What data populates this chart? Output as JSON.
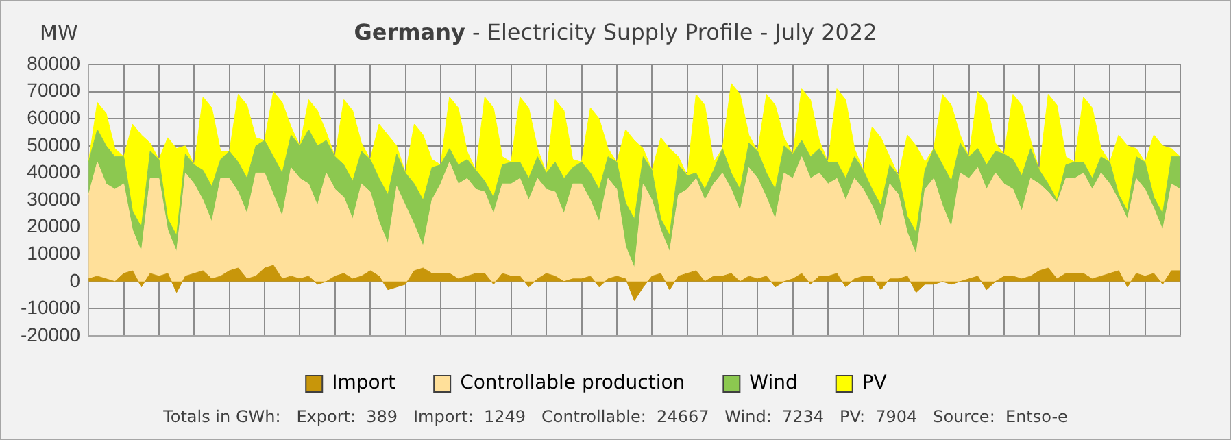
{
  "chart_data": {
    "type": "area",
    "title": "Germany - Electricity Supply Profile - July 2022",
    "ylabel": "MW",
    "stacked": true,
    "grid": true,
    "legend": "bottom",
    "tick_labels": "y",
    "marker": "none",
    "categories": [
      null,
      null,
      null,
      null,
      null,
      null,
      null,
      null,
      null,
      null,
      null,
      null,
      null,
      null,
      null,
      null,
      null,
      null,
      null,
      null,
      null,
      null,
      null,
      null,
      null,
      null,
      null,
      null,
      null,
      null,
      null,
      null,
      null,
      null,
      null,
      null,
      null,
      null,
      null,
      null,
      null,
      null,
      null,
      null,
      null,
      null,
      null,
      null,
      null,
      null,
      null,
      null,
      null,
      null,
      null,
      null,
      null,
      null,
      null,
      null,
      null,
      null,
      null,
      null,
      null,
      null,
      null,
      null,
      null,
      null,
      null,
      null,
      null,
      null,
      null,
      null,
      null,
      null,
      null,
      null,
      null,
      null,
      null,
      null,
      null,
      null,
      null,
      null,
      null,
      null,
      null,
      null,
      null,
      null,
      null,
      null,
      null,
      null,
      null,
      null,
      null,
      null,
      null,
      null,
      null,
      null,
      null,
      null,
      null,
      null,
      null,
      null,
      null,
      null,
      null,
      null,
      null,
      null,
      null,
      null,
      null,
      null,
      null,
      null,
      null
    ],
    "ylim": [
      -20000,
      80000
    ],
    "yticks": [
      -20000,
      -10000,
      0,
      10000,
      20000,
      30000,
      40000,
      50000,
      60000,
      70000,
      80000
    ],
    "series": [
      {
        "name": "Import",
        "color": "#c8960a",
        "values": [
          1000,
          2000,
          1000,
          0,
          3000,
          4000,
          -2000,
          3000,
          2000,
          3000,
          -4000,
          2000,
          3000,
          4000,
          1000,
          2000,
          4000,
          5000,
          1000,
          2000,
          5000,
          6000,
          1000,
          2000,
          1000,
          2000,
          -1000,
          0,
          2000,
          3000,
          1000,
          2000,
          4000,
          2000,
          -3000,
          -2000,
          -1000,
          4000,
          5000,
          3000,
          3000,
          3000,
          1000,
          2000,
          3000,
          3000,
          -1000,
          3000,
          2000,
          2000,
          -2000,
          1000,
          3000,
          2000,
          0,
          1000,
          1000,
          2000,
          -2000,
          1000,
          2000,
          1000,
          -7000,
          -2000,
          2000,
          3000,
          -3000,
          2000,
          3000,
          4000,
          0,
          2000,
          2000,
          3000,
          0,
          2000,
          1000,
          2000,
          -2000,
          0,
          1000,
          3000,
          -1000,
          2000,
          2000,
          3000,
          -2000,
          1000,
          2000,
          2000,
          -3000,
          1000,
          1000,
          2000,
          -4000,
          -1000,
          -1000,
          0,
          -1000,
          0,
          1000,
          2000,
          -3000,
          0,
          2000,
          2000,
          1000,
          2000,
          4000,
          5000,
          1000,
          3000,
          3000,
          3000,
          1000,
          2000,
          3000,
          4000,
          -2000,
          3000,
          2000,
          3000,
          -1000,
          4000,
          4000
        ]
      },
      {
        "name": "Controllable production",
        "color": "#ffe09a",
        "values": [
          31000,
          42000,
          35000,
          34000,
          33000,
          15000,
          13000,
          35000,
          36000,
          16000,
          15000,
          38000,
          33000,
          26000,
          21000,
          36000,
          34000,
          28000,
          24000,
          38000,
          35000,
          26000,
          23000,
          40000,
          37000,
          34000,
          29000,
          40000,
          32000,
          28000,
          22000,
          34000,
          29000,
          20000,
          17000,
          37000,
          29000,
          17000,
          8000,
          27000,
          33000,
          41000,
          35000,
          36000,
          31000,
          30000,
          26000,
          33000,
          34000,
          36000,
          32000,
          37000,
          31000,
          31000,
          25000,
          35000,
          35000,
          28000,
          24000,
          37000,
          32000,
          12000,
          12000,
          38000,
          28000,
          16000,
          14000,
          30000,
          31000,
          34000,
          30000,
          34000,
          38000,
          31000,
          26000,
          40000,
          37000,
          29000,
          25000,
          40000,
          37000,
          43000,
          39000,
          38000,
          34000,
          35000,
          32000,
          37000,
          32000,
          26000,
          23000,
          35000,
          31000,
          16000,
          14000,
          35000,
          39000,
          28000,
          21000,
          40000,
          37000,
          40000,
          37000,
          40000,
          34000,
          32000,
          25000,
          36000,
          32000,
          28000,
          28000,
          35000,
          35000,
          37000,
          33000,
          38000,
          33000,
          26000,
          25000,
          35000,
          32000,
          24000,
          20000,
          32000,
          30000
        ]
      },
      {
        "name": "Wind",
        "color": "#8cc850",
        "values": [
          12000,
          12000,
          14000,
          12000,
          10000,
          7000,
          9000,
          10000,
          7000,
          4000,
          6000,
          7000,
          7000,
          11000,
          13000,
          7000,
          10000,
          11000,
          13000,
          10000,
          12000,
          14000,
          16000,
          12000,
          12000,
          20000,
          22000,
          12000,
          12000,
          12000,
          14000,
          12000,
          12000,
          16000,
          18000,
          12000,
          12000,
          15000,
          17000,
          12000,
          7000,
          5000,
          7000,
          7000,
          7000,
          4000,
          6000,
          7000,
          8000,
          6000,
          8000,
          8000,
          6000,
          11000,
          13000,
          6000,
          8000,
          10000,
          12000,
          8000,
          10000,
          16000,
          18000,
          10000,
          11000,
          4000,
          6000,
          11000,
          5000,
          2000,
          4000,
          5000,
          9000,
          6000,
          8000,
          9000,
          10000,
          9000,
          11000,
          10000,
          9000,
          6000,
          8000,
          9000,
          8000,
          6000,
          8000,
          8000,
          7000,
          6000,
          8000,
          7000,
          7000,
          6000,
          8000,
          7000,
          11000,
          15000,
          17000,
          11000,
          8000,
          7000,
          9000,
          8000,
          11000,
          11000,
          13000,
          11000,
          5000,
          3000,
          1000,
          5000,
          6000,
          4000,
          4000,
          6000,
          8000,
          2000,
          3000,
          8000,
          10000,
          4000,
          6000,
          10000,
          12000
        ]
      },
      {
        "name": "PV",
        "color": "#ffff00",
        "values": [
          0,
          10000,
          12000,
          3000,
          0,
          32000,
          34000,
          3000,
          0,
          30000,
          32000,
          3000,
          0,
          27000,
          29000,
          3000,
          0,
          25000,
          27000,
          3000,
          0,
          24000,
          26000,
          3000,
          0,
          11000,
          13000,
          3000,
          0,
          24000,
          26000,
          3000,
          0,
          20000,
          22000,
          3000,
          0,
          22000,
          24000,
          3000,
          0,
          19000,
          21000,
          3000,
          0,
          31000,
          33000,
          3000,
          0,
          24000,
          26000,
          3000,
          0,
          23000,
          25000,
          3000,
          0,
          24000,
          26000,
          3000,
          0,
          27000,
          29000,
          3000,
          0,
          30000,
          32000,
          3000,
          0,
          29000,
          31000,
          3000,
          0,
          33000,
          35000,
          3000,
          0,
          29000,
          31000,
          3000,
          0,
          19000,
          21000,
          3000,
          0,
          27000,
          29000,
          3000,
          0,
          23000,
          25000,
          3000,
          0,
          30000,
          32000,
          3000,
          0,
          26000,
          28000,
          3000,
          0,
          21000,
          23000,
          3000,
          0,
          24000,
          26000,
          3000,
          0,
          33000,
          35000,
          3000,
          0,
          24000,
          26000,
          3000,
          0,
          22000,
          24000,
          3000,
          0,
          23000,
          25000,
          3000,
          0
        ]
      }
    ],
    "annotations": [
      "Totals in GWh:   Export:  389   Import:  1249   Controllable:  24667   Wind:  7234   PV:  7904   Source:  Entso-e"
    ]
  }
}
